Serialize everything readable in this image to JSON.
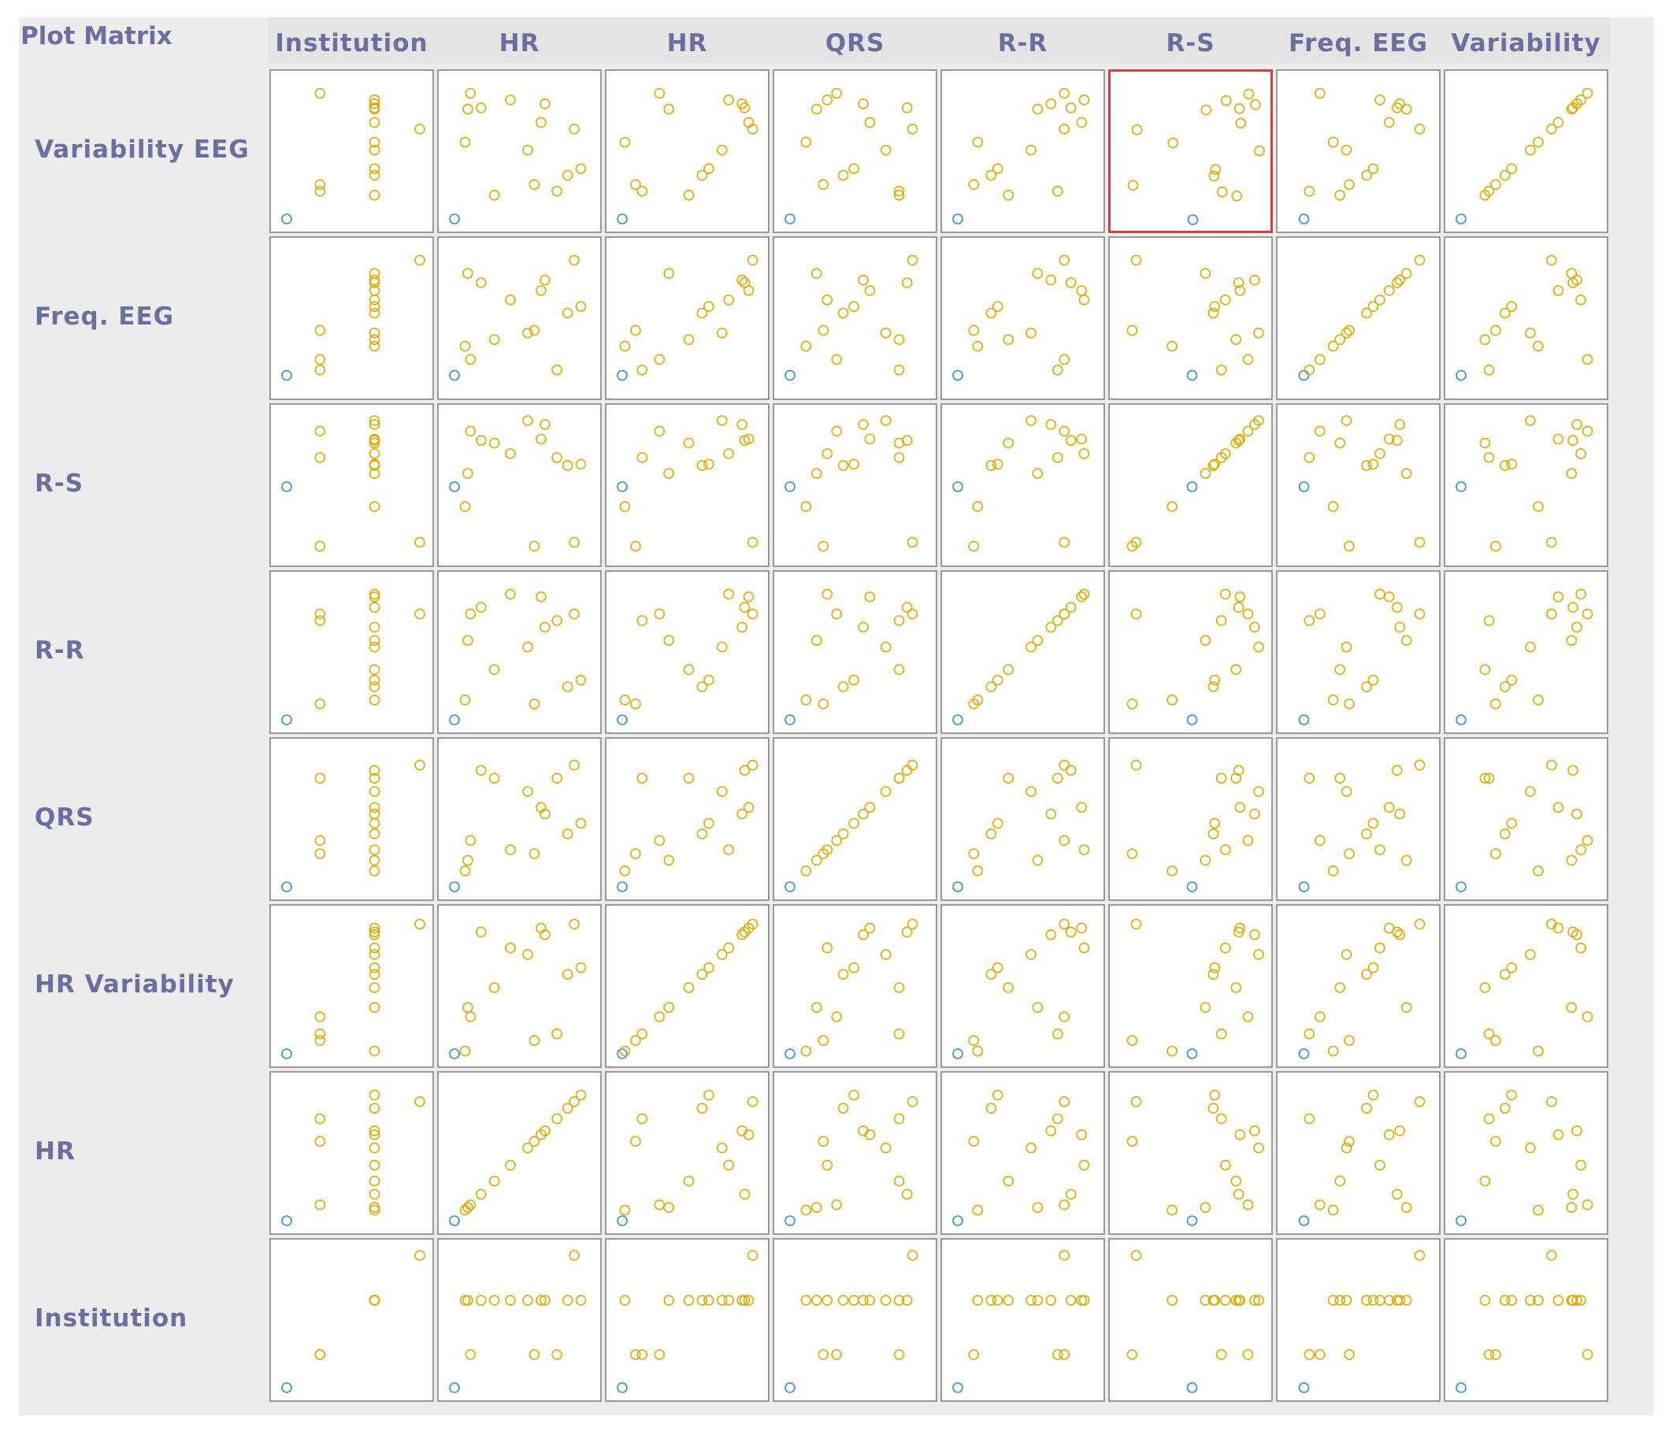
{
  "title": "Plot Matrix",
  "colors": {
    "default_point": "#e0a800",
    "highlight_point": "#2f8fd0",
    "selected_border": "#d64040",
    "label": "#6a6fa0"
  },
  "selected_cell": {
    "row": "Variability EEG",
    "column": "R-S"
  },
  "columns": [
    "Institution",
    "HR",
    "HR Variability",
    "QRS",
    "R-R",
    "R-S",
    "Freq. EEG",
    "Variability EEG"
  ],
  "rows": [
    "Variability EEG",
    "Freq. EEG",
    "R-S",
    "R-R",
    "QRS",
    "HR Variability",
    "HR",
    "Institution"
  ],
  "chart_data": {
    "type": "scatter",
    "kind": "scatter-plot-matrix",
    "variables": [
      "Institution",
      "HR",
      "HR Variability",
      "QRS",
      "R-R",
      "R-S",
      "Freq. EEG",
      "Variability EEG"
    ],
    "value_range": [
      0,
      1
    ],
    "highlight_index": 0,
    "records": [
      [
        0.0,
        0.0,
        0.0,
        0.0,
        0.0,
        0.5,
        0.08,
        0.0
      ],
      [
        0.25,
        0.12,
        0.28,
        0.35,
        0.8,
        0.92,
        0.2,
        0.95
      ],
      [
        0.66,
        0.65,
        0.95,
        0.6,
        0.93,
        0.86,
        0.72,
        0.73
      ],
      [
        0.66,
        0.55,
        0.75,
        0.72,
        0.55,
        1.0,
        0.4,
        0.52
      ],
      [
        0.66,
        0.68,
        0.9,
        0.55,
        0.7,
        0.97,
        0.8,
        0.87
      ],
      [
        0.66,
        0.42,
        0.8,
        0.28,
        0.95,
        0.75,
        0.65,
        0.9
      ],
      [
        0.66,
        0.1,
        0.35,
        0.2,
        0.6,
        0.6,
        0.85,
        0.83
      ],
      [
        0.25,
        0.77,
        0.15,
        0.82,
        0.75,
        0.72,
        0.12,
        0.21
      ],
      [
        0.66,
        0.85,
        0.6,
        0.4,
        0.25,
        0.66,
        0.55,
        0.33
      ],
      [
        1.0,
        0.9,
        0.98,
        0.92,
        0.8,
        0.08,
        0.95,
        0.68
      ],
      [
        0.66,
        0.3,
        0.5,
        0.82,
        0.38,
        0.83,
        0.35,
        0.18
      ],
      [
        0.25,
        0.6,
        0.1,
        0.25,
        0.12,
        0.05,
        0.42,
        0.26
      ],
      [
        0.66,
        0.2,
        0.92,
        0.88,
        0.85,
        0.85,
        0.78,
        0.84
      ],
      [
        0.66,
        0.95,
        0.65,
        0.48,
        0.3,
        0.67,
        0.6,
        0.38
      ],
      [
        0.66,
        0.08,
        0.02,
        0.12,
        0.15,
        0.35,
        0.3,
        0.58
      ]
    ]
  }
}
